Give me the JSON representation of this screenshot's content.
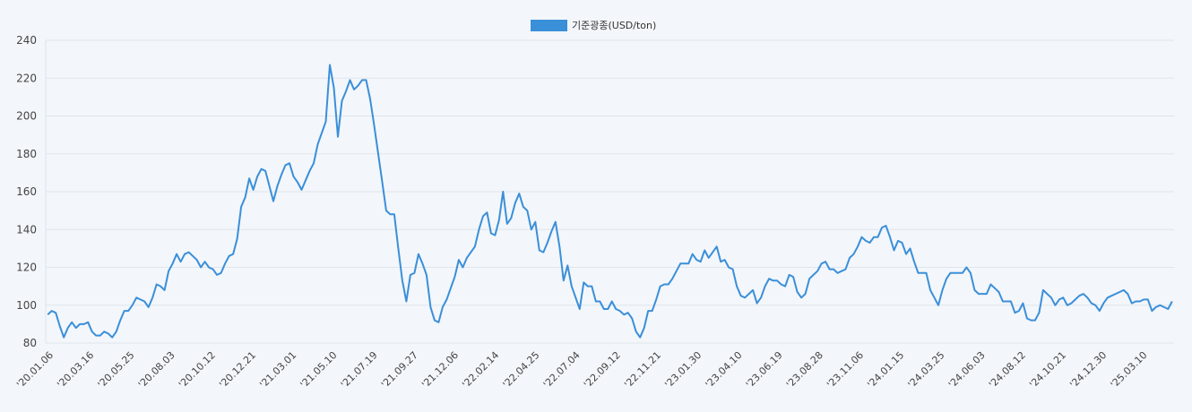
{
  "chart_data": {
    "type": "line",
    "legend": {
      "label": "기준광종(USD/ton)",
      "color": "#3a8fd9",
      "position": "top-center"
    },
    "ylim": [
      80,
      240
    ],
    "y_ticks": [
      80,
      100,
      120,
      140,
      160,
      180,
      200,
      220,
      240
    ],
    "x_tick_labels": [
      "'20.01.06",
      "'20.03.16",
      "'20.05.25",
      "'20.08.03",
      "'20.10.12",
      "'20.12.21",
      "'21.03.01",
      "'21.05.10",
      "'21.07.19",
      "'21.09.27",
      "'21.12.06",
      "'22.02.14",
      "'22.04.25",
      "'22.07.04",
      "'22.09.12",
      "'22.11.21",
      "'23.01.30",
      "'23.04.10",
      "'23.06.19",
      "'23.08.28",
      "'23.11.06",
      "'24.01.15",
      "'24.03.25",
      "'24.06.03",
      "'24.08.12",
      "'24.10.21",
      "'24.12.30",
      "'25.03.10"
    ],
    "grid": true,
    "series": [
      {
        "name": "기준광종(USD/ton)",
        "color": "#3a8fd9",
        "values": [
          95,
          97,
          96,
          89,
          83,
          88,
          91,
          88,
          90,
          90,
          91,
          86,
          84,
          84,
          86,
          85,
          83,
          86,
          92,
          97,
          97,
          100,
          104,
          103,
          102,
          99,
          104,
          111,
          110,
          108,
          118,
          122,
          127,
          123,
          127,
          128,
          126,
          124,
          120,
          123,
          120,
          119,
          116,
          117,
          122,
          126,
          127,
          135,
          152,
          157,
          167,
          161,
          168,
          172,
          171,
          163,
          155,
          163,
          169,
          174,
          175,
          168,
          165,
          161,
          166,
          171,
          175,
          185,
          191,
          197,
          227,
          215,
          189,
          208,
          213,
          219,
          214,
          216,
          219,
          219,
          209,
          195,
          180,
          165,
          150,
          148,
          148,
          130,
          113,
          102,
          116,
          117,
          127,
          122,
          116,
          99,
          92,
          91,
          99,
          103,
          109,
          115,
          124,
          120,
          125,
          128,
          131,
          140,
          147,
          149,
          138,
          137,
          145,
          160,
          143,
          146,
          154,
          159,
          152,
          150,
          140,
          144,
          129,
          128,
          133,
          139,
          144,
          131,
          113,
          121,
          110,
          104,
          98,
          112,
          110,
          110,
          102,
          102,
          98,
          98,
          102,
          98,
          97,
          95,
          96,
          93,
          86,
          83,
          88,
          97,
          97,
          103,
          110,
          111,
          111,
          114,
          118,
          122,
          122,
          122,
          127,
          124,
          123,
          129,
          125,
          128,
          131,
          123,
          124,
          120,
          119,
          110,
          105,
          104,
          106,
          108,
          101,
          104,
          110,
          114,
          113,
          113,
          111,
          110,
          116,
          115,
          107,
          104,
          106,
          114,
          116,
          118,
          122,
          123,
          119,
          119,
          117,
          118,
          119,
          125,
          127,
          131,
          136,
          134,
          133,
          136,
          136,
          141,
          142,
          136,
          129,
          134,
          133,
          127,
          130,
          123,
          117,
          117,
          117,
          108,
          104,
          100,
          108,
          114,
          117,
          117,
          117,
          117,
          120,
          117,
          108,
          106,
          106,
          106,
          111,
          109,
          107,
          102,
          102,
          102,
          96,
          97,
          101,
          93,
          92,
          92,
          96,
          108,
          106,
          104,
          100,
          103,
          104,
          100,
          101,
          103,
          105,
          106,
          104,
          101,
          100,
          97,
          101,
          104,
          105,
          106,
          107,
          108,
          106,
          101,
          102,
          102,
          103,
          103,
          97,
          99,
          100,
          99,
          98,
          102
        ]
      }
    ]
  }
}
